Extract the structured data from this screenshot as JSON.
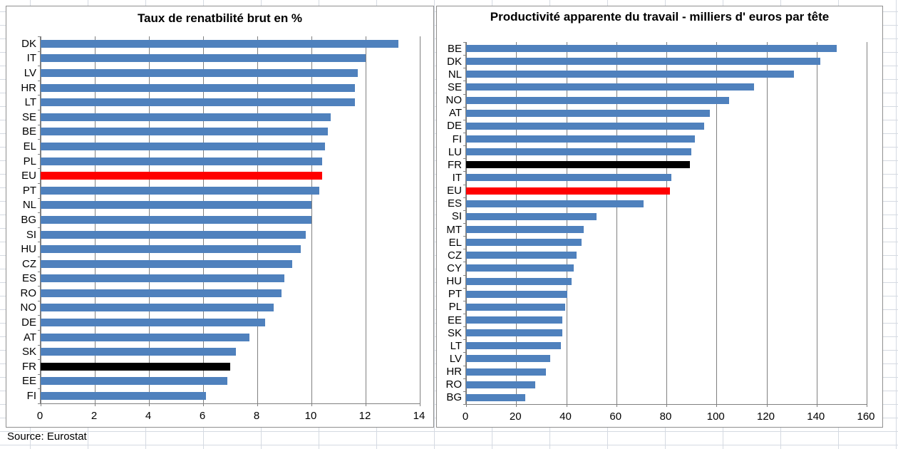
{
  "source_note": "Source: Eurostat",
  "colors": {
    "bar_default": "#4F81BD",
    "bar_eu_highlight": "#FF0000",
    "bar_fr_highlight": "#000000",
    "chart_gridline": "#808080",
    "sheet_gridline": "#D5DAE2"
  },
  "chart_data": [
    {
      "type": "bar",
      "orientation": "horizontal",
      "title": "Taux de renatbilité brut en %",
      "xlabel": "",
      "ylabel": "",
      "xlim": [
        0,
        14
      ],
      "ticks": [
        0,
        2,
        4,
        6,
        8,
        10,
        12,
        14
      ],
      "grid": true,
      "items": [
        {
          "label": "DK",
          "value": 13.2
        },
        {
          "label": "IT",
          "value": 12.0
        },
        {
          "label": "LV",
          "value": 11.7
        },
        {
          "label": "HR",
          "value": 11.6
        },
        {
          "label": "LT",
          "value": 11.6
        },
        {
          "label": "SE",
          "value": 10.7
        },
        {
          "label": "BE",
          "value": 10.6
        },
        {
          "label": "EL",
          "value": 10.5
        },
        {
          "label": "PL",
          "value": 10.4
        },
        {
          "label": "EU",
          "value": 10.4,
          "color": "#FF0000"
        },
        {
          "label": "PT",
          "value": 10.3
        },
        {
          "label": "NL",
          "value": 10.0
        },
        {
          "label": "BG",
          "value": 10.0
        },
        {
          "label": "SI",
          "value": 9.8
        },
        {
          "label": "HU",
          "value": 9.6
        },
        {
          "label": "CZ",
          "value": 9.3
        },
        {
          "label": "ES",
          "value": 9.0
        },
        {
          "label": "RO",
          "value": 8.9
        },
        {
          "label": "NO",
          "value": 8.6
        },
        {
          "label": "DE",
          "value": 8.3
        },
        {
          "label": "AT",
          "value": 7.7
        },
        {
          "label": "SK",
          "value": 7.2
        },
        {
          "label": "FR",
          "value": 7.0,
          "color": "#000000"
        },
        {
          "label": "EE",
          "value": 6.9
        },
        {
          "label": "FI",
          "value": 6.1
        }
      ]
    },
    {
      "type": "bar",
      "orientation": "horizontal",
      "title": "Productivité apparente du travail - milliers d' euros par tête",
      "xlabel": "",
      "ylabel": "",
      "xlim": [
        0,
        160
      ],
      "ticks": [
        0,
        20,
        40,
        60,
        80,
        100,
        120,
        140,
        160
      ],
      "grid": true,
      "items": [
        {
          "label": "BE",
          "value": 148
        },
        {
          "label": "DK",
          "value": 141.5
        },
        {
          "label": "NL",
          "value": 131
        },
        {
          "label": "SE",
          "value": 115
        },
        {
          "label": "NO",
          "value": 105
        },
        {
          "label": "AT",
          "value": 97.5
        },
        {
          "label": "DE",
          "value": 95
        },
        {
          "label": "FI",
          "value": 91.5
        },
        {
          "label": "LU",
          "value": 90
        },
        {
          "label": "FR",
          "value": 89.5,
          "color": "#000000"
        },
        {
          "label": "IT",
          "value": 82
        },
        {
          "label": "EU",
          "value": 81.5,
          "color": "#FF0000"
        },
        {
          "label": "ES",
          "value": 71
        },
        {
          "label": "SI",
          "value": 52
        },
        {
          "label": "MT",
          "value": 47
        },
        {
          "label": "EL",
          "value": 46
        },
        {
          "label": "CZ",
          "value": 44
        },
        {
          "label": "CY",
          "value": 43
        },
        {
          "label": "HU",
          "value": 42
        },
        {
          "label": "PT",
          "value": 40.5
        },
        {
          "label": "PL",
          "value": 39.5
        },
        {
          "label": "EE",
          "value": 38.5
        },
        {
          "label": "SK",
          "value": 38.5
        },
        {
          "label": "LT",
          "value": 38
        },
        {
          "label": "LV",
          "value": 33.5
        },
        {
          "label": "HR",
          "value": 32
        },
        {
          "label": "RO",
          "value": 27.5
        },
        {
          "label": "BG",
          "value": 23.5
        }
      ]
    }
  ]
}
